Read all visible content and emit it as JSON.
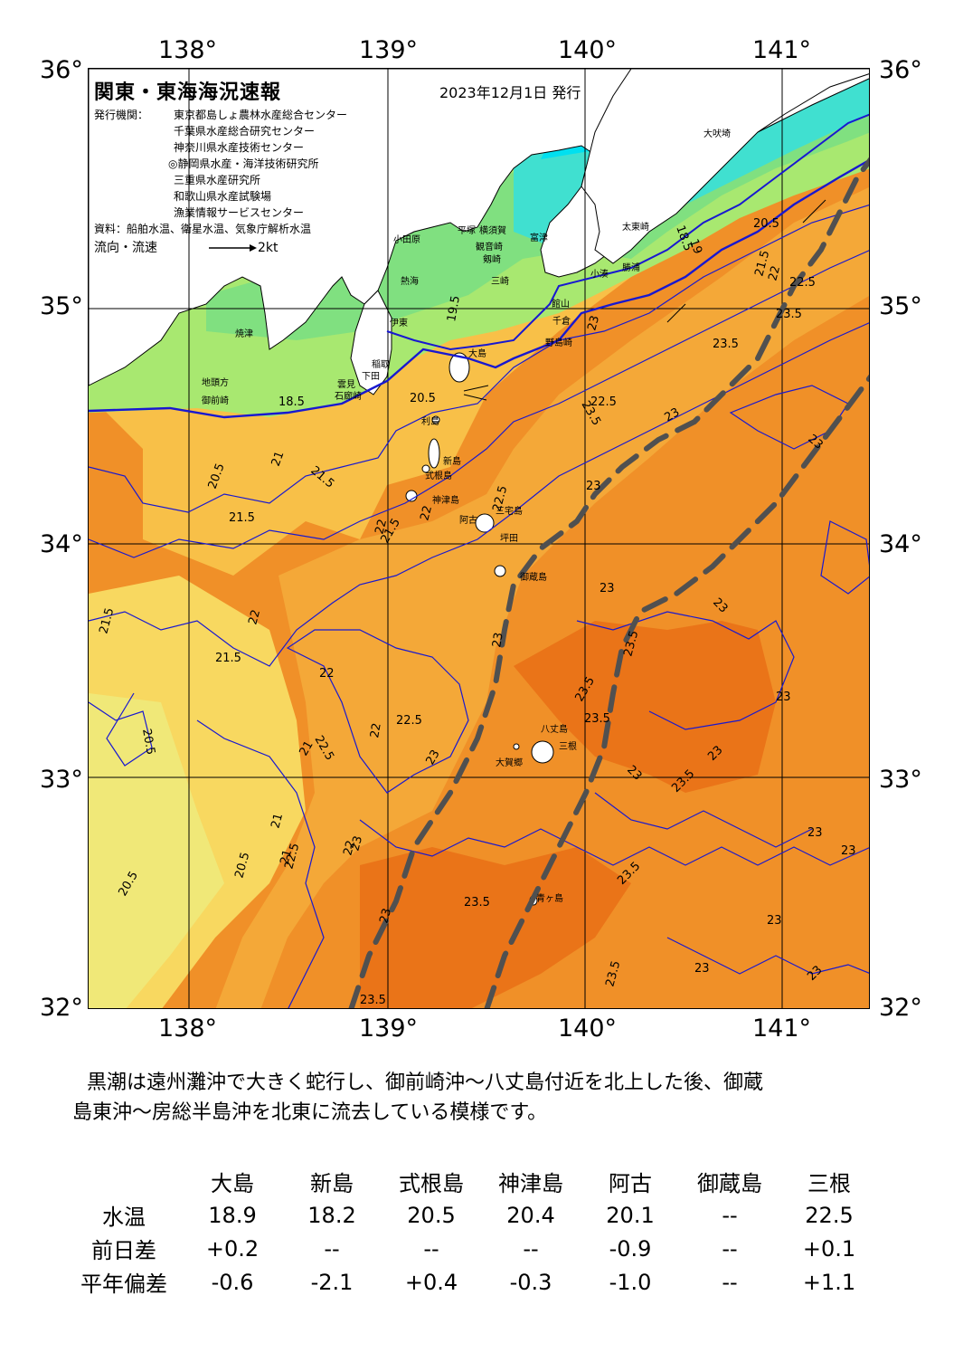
{
  "map": {
    "title": "関東・東海海況速報",
    "issued": "2023年12月1日 発行",
    "issuer_label": "発行機関：",
    "issuers": [
      "東京都島しょ農林水産総合センター",
      "千葉県水産総合研究センター",
      "神奈川県水産技術センター",
      "◎静岡県水産・海洋技術研究所",
      "三重県水産研究所",
      "和歌山県水産試験場",
      "漁業情報サービスセンター"
    ],
    "source": "資料：船舶水温、衛星水温、気象庁解析水温",
    "flow_label": "流向・流速",
    "flow_scale": "2kt",
    "lon_labels": [
      "138°",
      "139°",
      "140°",
      "141°"
    ],
    "lat_labels": [
      "36°",
      "35°",
      "34°",
      "33°",
      "32°"
    ],
    "contour_labels": [
      "18.5",
      "19.5",
      "20.5",
      "22.5",
      "21",
      "21.5",
      "22",
      "20.5",
      "21.5",
      "21.5",
      "22",
      "22.5",
      "23",
      "21.5",
      "22",
      "21.5",
      "22",
      "22.5",
      "23",
      "23.5",
      "23",
      "23.5",
      "23",
      "23.5",
      "23",
      "23.5",
      "23.5",
      "23.5",
      "23",
      "23",
      "23",
      "23.5",
      "23.5",
      "23",
      "23",
      "23",
      "23",
      "23",
      "23.5",
      "23.5",
      "20.5",
      "20.5",
      "21",
      "22",
      "21",
      "23",
      "22.5",
      "22",
      "20.5",
      "21",
      "22.5",
      "23",
      "23",
      "23",
      "18.5",
      "19",
      "20.5",
      "21.5",
      "22",
      "22.5",
      "23",
      "23.5"
    ],
    "place_names": [
      "大吠埼",
      "太東崎",
      "勝浦",
      "小湊",
      "富津",
      "平塚",
      "横須賀",
      "観音崎",
      "剱崎",
      "三崎",
      "館山",
      "千倉",
      "野島崎",
      "小田原",
      "熱海",
      "伊東",
      "稲取",
      "下田",
      "石廊崎",
      "雲見",
      "焼津",
      "御前崎",
      "地頭方",
      "大島",
      "利島",
      "新島",
      "式根島",
      "神津島",
      "三宅島",
      "阿古",
      "坪田",
      "御蔵島",
      "八丈島",
      "大賀郷",
      "青ヶ島",
      "三根"
    ]
  },
  "summary": {
    "line1": "黒潮は遠州灘沖で大きく蛇行し、御前崎沖～八丈島付近を北上した後、御蔵",
    "line2": "島東沖～房総半島沖を北東に流去している模様です。"
  },
  "table": {
    "columns": [
      "大島",
      "新島",
      "式根島",
      "神津島",
      "阿古",
      "御蔵島",
      "三根"
    ],
    "rows": [
      {
        "label": "水温",
        "values": [
          "18.9",
          "18.2",
          "20.5",
          "20.4",
          "20.1",
          "--",
          "22.5"
        ]
      },
      {
        "label": "前日差",
        "values": [
          "+0.2",
          "--",
          "--",
          "--",
          "-0.9",
          "--",
          "+0.1"
        ]
      },
      {
        "label": "平年偏差",
        "values": [
          "-0.6",
          "-2.1",
          "+0.4",
          "-0.3",
          "-1.0",
          "--",
          "+1.1"
        ]
      }
    ]
  },
  "colors": {
    "land": "#ffffff",
    "t_18": "#00e0f0",
    "t_18_5": "#40e0d0",
    "t_19": "#60e0a0",
    "t_19_5": "#80e080",
    "t_20": "#a8e870",
    "t_20_5": "#d8f070",
    "t_21": "#f0e878",
    "t_21_5": "#f8d860",
    "t_22": "#f8c048",
    "t_22_5": "#f4a838",
    "t_23": "#f09028",
    "t_23_5": "#ea7418",
    "contour_blue": "#1818d0",
    "kuroshio": "#505050"
  }
}
